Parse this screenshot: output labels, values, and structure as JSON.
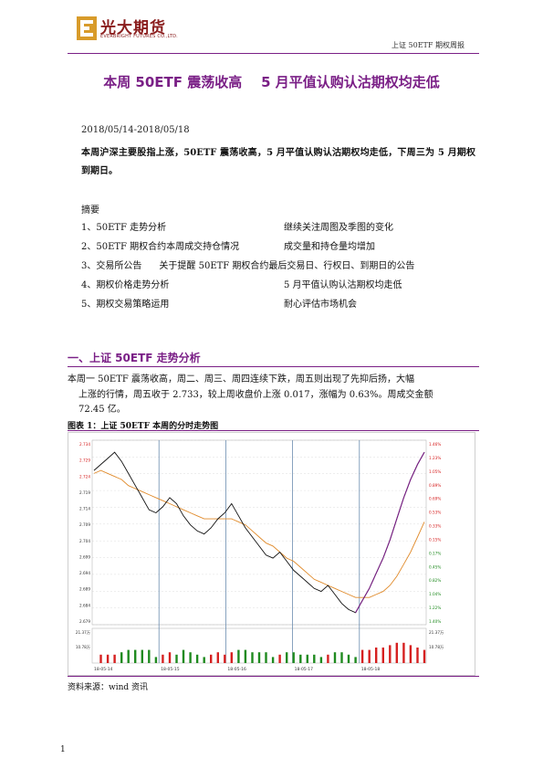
{
  "header": {
    "logo_cn": "光大期货",
    "logo_en": "EVERBRIGHT FUTURES CO.,LTD.",
    "report_name": "上证 50ETF 期权周报"
  },
  "title": "本周 50ETF 震荡收高    5 月平值认购认沽期权均走低",
  "date_range": "2018/05/14-2018/05/18",
  "lead": "本周沪深主要股指上涨，50ETF 震荡收高，5 月平值认购认沽期权均走低，下周三为 5 月期权到期日。",
  "summary": {
    "title": "摘要",
    "items": [
      {
        "left": "1、50ETF 走势分析",
        "right": "继续关注周图及季图的变化"
      },
      {
        "left": "2、50ETF 期权合约本周成交持仓情况",
        "right": "成交量和持仓量均增加"
      },
      {
        "left": "3、交易所公告      关于提醒 50ETF 期权合约最后交易日、行权日、到期日的公告",
        "right": ""
      },
      {
        "left": "4、期权价格走势分析",
        "right": "5 月平值认购认沽期权均走低"
      },
      {
        "left": "5、期权交易策略运用",
        "right": "耐心评估市场机会"
      }
    ]
  },
  "section1": {
    "title": "一、上证 50ETF 走势分析",
    "para_lines": [
      "本周一 50ETF 震荡收高，周二、周三、周四连续下跌，周五则出现了先抑后扬，大幅",
      "上涨的行情，周五收于 2.733，较上周收盘价上涨 0.017，涨幅为 0.63%。周成交金额",
      "72.45 亿。"
    ]
  },
  "figure": {
    "title": "图表 1：上证 50ETF 本周的分时走势图",
    "source": "资料来源：wind 资讯"
  },
  "page_number": "1",
  "chart_data": {
    "type": "line",
    "x_day_labels": [
      "18-05-14",
      "18-05-15",
      "18-05-16",
      "18-05-17",
      "18-05-18"
    ],
    "left_axis": [
      "2.734",
      "2.729",
      "2.724",
      "2.719",
      "2.714",
      "2.709",
      "2.704",
      "2.699",
      "2.694",
      "2.689",
      "2.684",
      "2.679"
    ],
    "right_axis": [
      "1.46%",
      "1.23%",
      "1.05%",
      "0.89%",
      "0.69%",
      "0.53%",
      "0.33%",
      "0.15%",
      "0.17%",
      "0.45%",
      "0.82%",
      "1.04%",
      "1.22%",
      "1.40%"
    ],
    "volume_labels": [
      "21.37万",
      "10.78万"
    ],
    "price_series": [
      2.727,
      2.729,
      2.731,
      2.733,
      2.73,
      2.726,
      2.722,
      2.718,
      2.714,
      2.713,
      2.715,
      2.718,
      2.716,
      2.712,
      2.709,
      2.707,
      2.706,
      2.708,
      2.711,
      2.713,
      2.716,
      2.712,
      2.708,
      2.705,
      2.702,
      2.699,
      2.698,
      2.7,
      2.697,
      2.694,
      2.692,
      2.69,
      2.688,
      2.687,
      2.689,
      2.686,
      2.683,
      2.681,
      2.68,
      2.684,
      2.688,
      2.693,
      2.698,
      2.704,
      2.711,
      2.718,
      2.724,
      2.729,
      2.733
    ],
    "avg_series": [
      2.726,
      2.727,
      2.726,
      2.725,
      2.724,
      2.722,
      2.721,
      2.72,
      2.719,
      2.718,
      2.717,
      2.716,
      2.715,
      2.714,
      2.713,
      2.712,
      2.711,
      2.711,
      2.711,
      2.711,
      2.711,
      2.71,
      2.709,
      2.707,
      2.705,
      2.703,
      2.702,
      2.7,
      2.698,
      2.697,
      2.695,
      2.693,
      2.691,
      2.69,
      2.689,
      2.688,
      2.687,
      2.686,
      2.685,
      2.685,
      2.685,
      2.686,
      2.687,
      2.689,
      2.692,
      2.696,
      2.7,
      2.705,
      2.71
    ],
    "y_range": [
      2.676,
      2.737
    ],
    "session_markers": [
      1,
      2,
      3,
      4
    ],
    "colors": {
      "price": "#111111",
      "price_up": "#7a1f86",
      "avg": "#e08a2a",
      "grid": "#dddddd",
      "marker": "#6a8caf",
      "volume_up": "#d62020",
      "volume_down": "#1f8a1f"
    }
  }
}
